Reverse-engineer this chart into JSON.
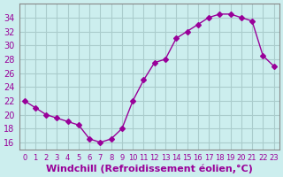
{
  "x": [
    0,
    1,
    2,
    3,
    4,
    5,
    6,
    7,
    8,
    9,
    10,
    11,
    12,
    13,
    14,
    15,
    16,
    17,
    18,
    19,
    20,
    21,
    22,
    23
  ],
  "y": [
    22,
    21,
    20,
    19.5,
    19,
    18.5,
    16.5,
    16,
    16.5,
    18,
    22,
    25,
    27.5,
    28,
    31,
    32,
    33,
    34,
    34.5,
    34.5,
    34,
    33.5,
    28.5,
    27
  ],
  "line_color": "#990099",
  "marker": "D",
  "marker_size": 3,
  "bg_color": "#cceeee",
  "grid_color": "#aacccc",
  "xlabel": "Windchill (Refroidissement éolien,°C)",
  "xlabel_color": "#990099",
  "xlabel_fontsize": 8,
  "tick_color": "#990099",
  "tick_fontsize": 7,
  "ylim": [
    15,
    36
  ],
  "yticks": [
    16,
    18,
    20,
    22,
    24,
    26,
    28,
    30,
    32,
    34
  ],
  "xticks": [
    0,
    1,
    2,
    3,
    4,
    5,
    6,
    7,
    8,
    9,
    10,
    11,
    12,
    13,
    14,
    15,
    16,
    17,
    18,
    19,
    20,
    21,
    22,
    23
  ],
  "xtick_labels": [
    "0",
    "1",
    "2",
    "3",
    "4",
    "5",
    "6",
    "7",
    "8",
    "9",
    "10",
    "11",
    "12",
    "13",
    "14",
    "15",
    "16",
    "17",
    "18",
    "19",
    "20",
    "21",
    "22",
    "23"
  ]
}
